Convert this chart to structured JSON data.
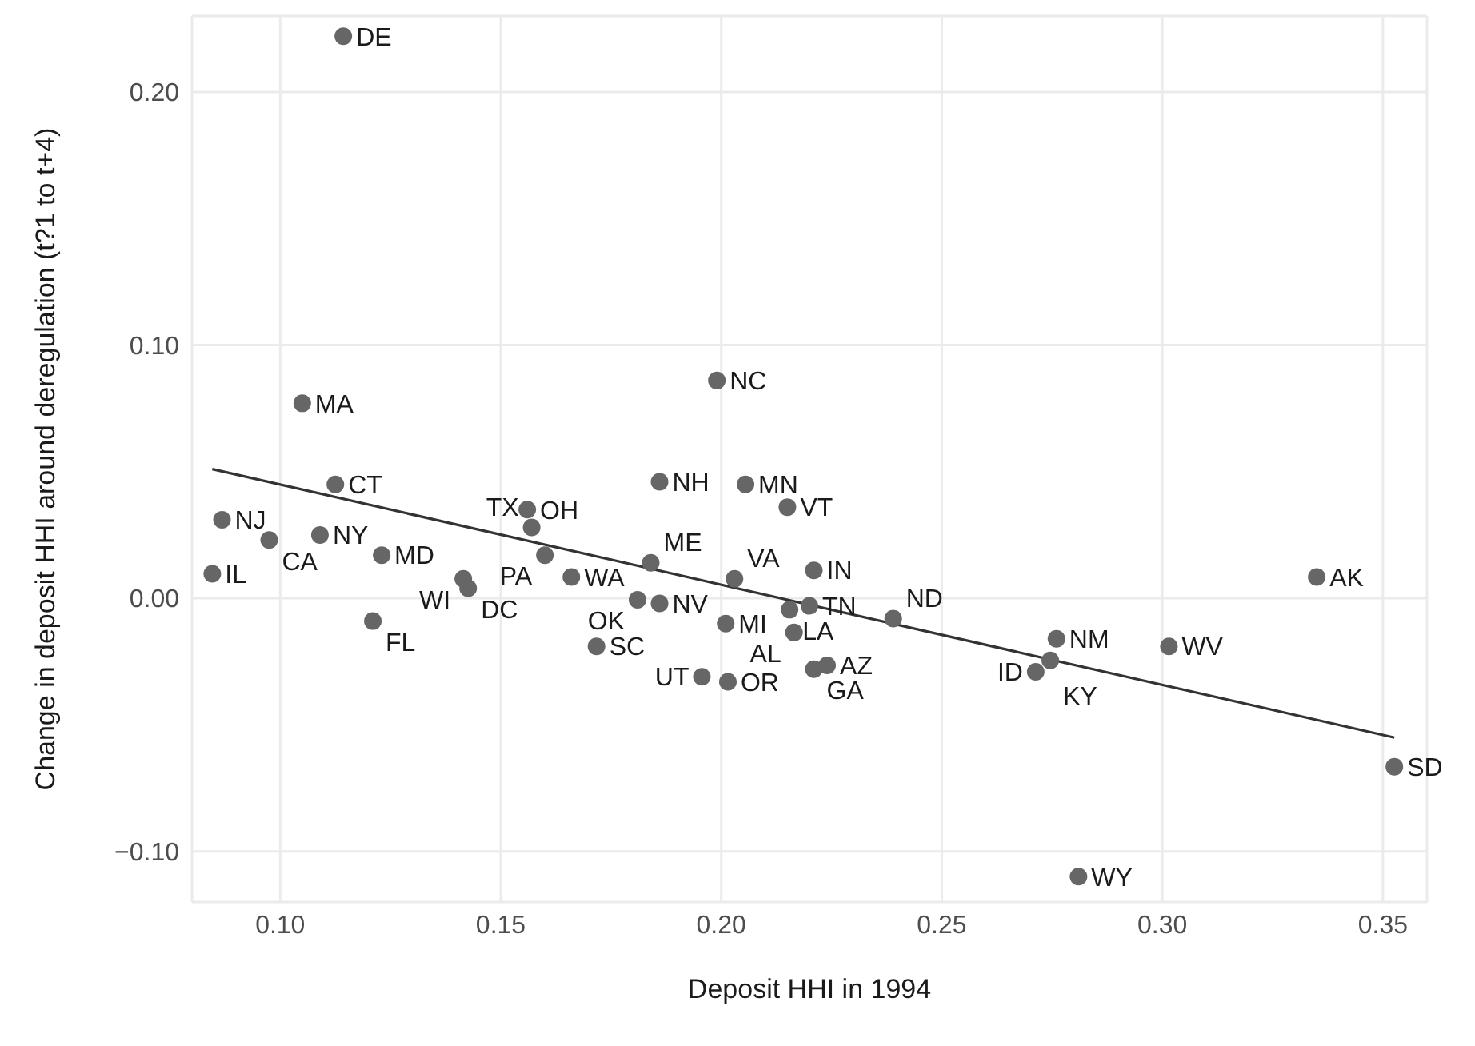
{
  "chart_data": {
    "type": "scatter",
    "xlabel": "Deposit HHI in 1994",
    "ylabel": "Change in deposit HHI around deregulation (t?1 to t+4)",
    "xlim": [
      0.08,
      0.36
    ],
    "ylim": [
      -0.12,
      0.23
    ],
    "xticks": [
      {
        "value": 0.1,
        "label": "0.10"
      },
      {
        "value": 0.15,
        "label": "0.15"
      },
      {
        "value": 0.2,
        "label": "0.20"
      },
      {
        "value": 0.25,
        "label": "0.25"
      },
      {
        "value": 0.3,
        "label": "0.30"
      },
      {
        "value": 0.35,
        "label": "0.35"
      }
    ],
    "yticks": [
      {
        "value": -0.1,
        "label": "−0.10"
      },
      {
        "value": 0,
        "label": "0.00"
      },
      {
        "value": 0.1,
        "label": "0.10"
      },
      {
        "value": 0.2,
        "label": "0.20"
      }
    ],
    "grid": true,
    "series": [
      {
        "color": "#666666",
        "marker": "circle",
        "x": [
          0.1143,
          0.105,
          0.199,
          0.1125,
          0.186,
          0.2055,
          0.215,
          0.156,
          0.157,
          0.0868,
          0.0975,
          0.109,
          0.123,
          0.16,
          0.184,
          0.221,
          0.0846,
          0.166,
          0.203,
          0.1415,
          0.1426,
          0.335,
          0.181,
          0.186,
          0.2155,
          0.22,
          0.239,
          0.121,
          0.201,
          0.2165,
          0.276,
          0.3015,
          0.1717,
          0.2746,
          0.224,
          0.221,
          0.2713,
          0.1956,
          0.2015,
          0.3526,
          0.281
        ],
        "values": [
          0.222,
          0.077,
          0.086,
          0.045,
          0.046,
          0.045,
          0.036,
          0.035,
          0.028,
          0.031,
          0.023,
          0.025,
          0.017,
          0.017,
          0.014,
          0.011,
          0.0097,
          0.0084,
          0.0077,
          0.0077,
          0.004,
          0.0084,
          -0.0006,
          -0.002,
          -0.0045,
          -0.003,
          -0.008,
          -0.009,
          -0.01,
          -0.0135,
          -0.016,
          -0.019,
          -0.019,
          -0.0245,
          -0.0265,
          -0.028,
          -0.029,
          -0.031,
          -0.033,
          -0.0665,
          -0.11
        ],
        "value_labels": [
          "DE",
          "MA",
          "NC",
          "CT",
          "NH",
          "MN",
          "VT",
          "OH",
          "TX",
          "NJ",
          "CA",
          "NY",
          "MD",
          "PA",
          "ME",
          "IN",
          "IL",
          "WA",
          "VA",
          "WI",
          "DC",
          "AK",
          "OK",
          "NV",
          "LA",
          "TN",
          "ND",
          "FL",
          "MI",
          "AL",
          "NM",
          "WV",
          "SC",
          "KY",
          "AZ",
          "GA",
          "ID",
          "UT",
          "OR",
          "SD",
          "WY"
        ]
      },
      {
        "type": "line",
        "color": "#333333",
        "x": [
          0.0846,
          0.3526
        ],
        "values": [
          0.051,
          -0.055
        ]
      }
    ]
  }
}
